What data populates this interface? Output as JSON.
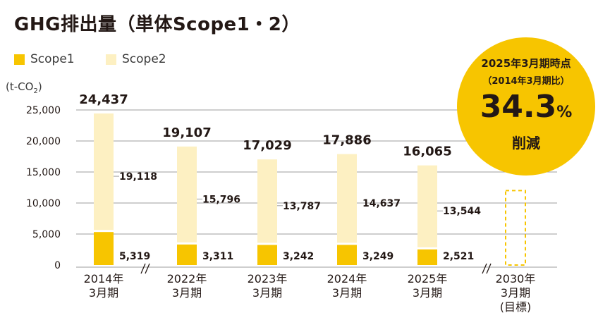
{
  "title": "GHG排出量（単体Scope1・2）",
  "colors": {
    "scope1": "#f7c500",
    "scope2": "#fdf0c2",
    "grid": "#9e9e9e",
    "target_border": "#f7c500"
  },
  "legend": {
    "scope1": "Scope1",
    "scope2": "Scope2"
  },
  "badge": {
    "line1": "2025年3月期時点",
    "line2": "（2014年3月期比）",
    "value": "34.3",
    "unit": "%",
    "line3": "削減"
  },
  "chart_data": {
    "type": "bar",
    "stacked": true,
    "unit_label": "(t-CO2)",
    "categories": [
      "2014年\n3月期",
      "2022年\n3月期",
      "2023年\n3月期",
      "2024年\n3月期",
      "2025年\n3月期",
      "2030年\n3月期\n(目標)"
    ],
    "series": [
      {
        "name": "Scope1",
        "values": [
          5319,
          3311,
          3242,
          3249,
          2521,
          null
        ]
      },
      {
        "name": "Scope2",
        "values": [
          19118,
          15796,
          13787,
          14637,
          13544,
          null
        ]
      }
    ],
    "totals": [
      24437,
      19107,
      17029,
      17886,
      16065,
      null
    ],
    "scope1_labels": [
      "5,319",
      "3,311",
      "3,242",
      "3,249",
      "2,521",
      ""
    ],
    "scope2_labels": [
      "19,118",
      "15,796",
      "13,787",
      "14,637",
      "13,544",
      ""
    ],
    "total_labels": [
      "24,437",
      "19,107",
      "17,029",
      "17,886",
      "16,065",
      ""
    ],
    "target_bar": {
      "category_index": 5,
      "value": 12000,
      "style": "dashed-outline"
    },
    "yticks": [
      0,
      5000,
      10000,
      15000,
      20000,
      25000
    ],
    "ytick_labels": [
      "0",
      "5,000",
      "10,000",
      "15,000",
      "20,000",
      "25,000"
    ],
    "ylim": [
      0,
      25000
    ],
    "grid": true,
    "axis_breaks_after_category": [
      0,
      4
    ],
    "legend_position": "top-left"
  }
}
